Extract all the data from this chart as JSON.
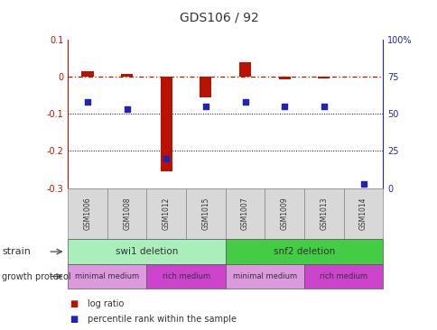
{
  "title": "GDS106 / 92",
  "samples": [
    "GSM1006",
    "GSM1008",
    "GSM1012",
    "GSM1015",
    "GSM1007",
    "GSM1009",
    "GSM1013",
    "GSM1014"
  ],
  "log_ratio": [
    0.015,
    0.008,
    -0.255,
    -0.055,
    0.04,
    -0.008,
    -0.005,
    0.0
  ],
  "percentile_rank": [
    58,
    53,
    20,
    55,
    58,
    55,
    55,
    3
  ],
  "ylim_left": [
    -0.3,
    0.1
  ],
  "ylim_right": [
    0,
    100
  ],
  "yticks_left": [
    -0.3,
    -0.2,
    -0.1,
    0.0,
    0.1
  ],
  "yticks_right": [
    0,
    25,
    50,
    75,
    100
  ],
  "ytick_labels_left": [
    "-0.3",
    "-0.2",
    "-0.1",
    "0",
    "0.1"
  ],
  "ytick_labels_right": [
    "0",
    "25",
    "50",
    "75",
    "100%"
  ],
  "dotted_lines": [
    -0.1,
    -0.2
  ],
  "bar_color": "#bb1100",
  "dot_color": "#2222bb",
  "strain_groups": [
    {
      "label": "swi1 deletion",
      "start": 0,
      "end": 4,
      "color": "#aaeebb"
    },
    {
      "label": "snf2 deletion",
      "start": 4,
      "end": 8,
      "color": "#44cc44"
    }
  ],
  "protocol_groups": [
    {
      "label": "minimal medium",
      "start": 0,
      "end": 2,
      "color": "#dd99dd"
    },
    {
      "label": "rich medium",
      "start": 2,
      "end": 4,
      "color": "#cc44cc"
    },
    {
      "label": "minimal medium",
      "start": 4,
      "end": 6,
      "color": "#dd99dd"
    },
    {
      "label": "rich medium",
      "start": 6,
      "end": 8,
      "color": "#cc44cc"
    }
  ],
  "legend_items": [
    {
      "label": "log ratio",
      "color": "#bb1100"
    },
    {
      "label": "percentile rank within the sample",
      "color": "#2222bb"
    }
  ],
  "title_color": "#333333",
  "left_axis_color": "#bb1100",
  "right_axis_color": "#2222bb",
  "fig_width": 4.85,
  "fig_height": 3.66,
  "dpi": 100
}
